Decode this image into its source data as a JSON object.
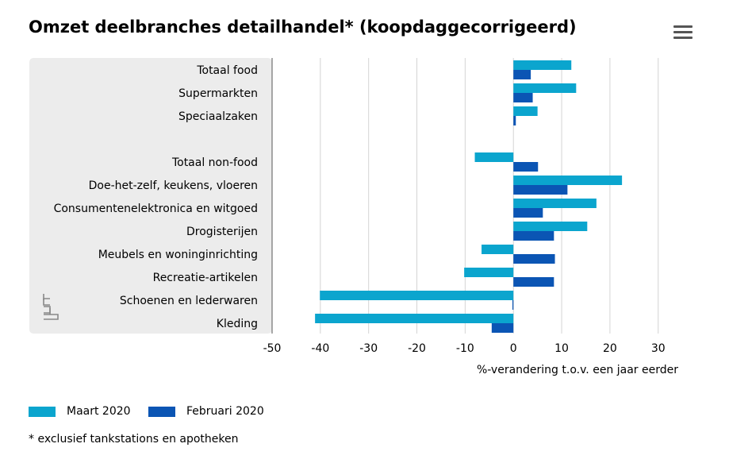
{
  "header": {
    "title": "Omzet deelbranches detailhandel* (koopdaggecorrigeerd)",
    "menu_icon": "hamburger-menu-icon"
  },
  "colors": {
    "march": "#0ba5ce",
    "february": "#0b55b4",
    "panel": "#ececec",
    "grid": "#d4d4d4",
    "axis": "#555555"
  },
  "chart_data": {
    "type": "bar",
    "orientation": "horizontal",
    "categories": [
      "Totaal food",
      "Supermarkten",
      "Speciaalzaken",
      "",
      "Totaal non-food",
      "Doe-het-zelf, keukens, vloeren",
      "Consumentenelektronica en witgoed",
      "Drogisterijen",
      "Meubels en woninginrichting",
      "Recreatie-artikelen",
      "Schoenen en lederwaren",
      "Kleding"
    ],
    "series": [
      {
        "name": "Maart 2020",
        "values": [
          12,
          13,
          5,
          null,
          -8,
          22.5,
          17.2,
          15.3,
          -6.6,
          -10.2,
          -40.1,
          -41.1
        ]
      },
      {
        "name": "Februari 2020",
        "values": [
          3.6,
          4,
          0.5,
          null,
          5.1,
          11.2,
          6.1,
          8.4,
          8.6,
          8.4,
          -0.2,
          -4.5
        ]
      }
    ],
    "xlabel": "%-verandering t.o.v. een jaar eerder",
    "xlim": [
      -50,
      33
    ],
    "xticks": [
      -50,
      -40,
      -30,
      -20,
      -10,
      0,
      10,
      20,
      30
    ],
    "grid": true,
    "legend_position": "bottom-left"
  },
  "footnote": "* exclusief tankstations en apotheken",
  "logo": {
    "icon": "cbs-logo-icon",
    "text": "cbs"
  }
}
